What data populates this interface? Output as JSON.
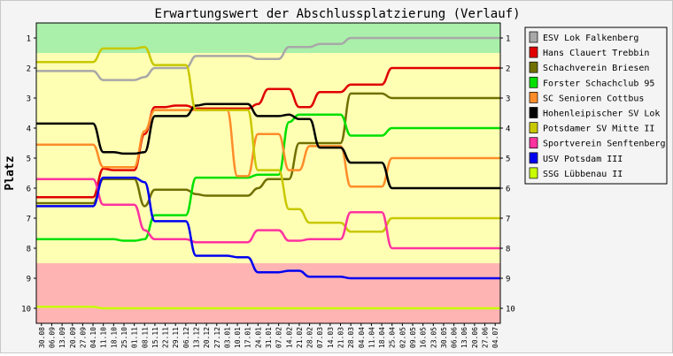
{
  "chart_data": {
    "type": "line",
    "title": "Erwartungswert der Abschlussplatzierung (Verlauf)",
    "xlabel": "",
    "ylabel": "Platz",
    "ylim": [
      1,
      10
    ],
    "y_reversed": true,
    "y_ticks": [
      "1",
      "2",
      "3",
      "4",
      "5",
      "6",
      "7",
      "8",
      "9",
      "10"
    ],
    "legend_position": "right",
    "x": [
      "30.08",
      "06.09",
      "13.09",
      "20.09",
      "27.09",
      "04.10",
      "11.10",
      "18.10",
      "25.10",
      "01.11",
      "08.11",
      "15.11",
      "22.11",
      "29.11",
      "06.12",
      "13.12",
      "20.12",
      "27.12",
      "03.01",
      "10.01",
      "17.01",
      "24.01",
      "31.01",
      "07.02",
      "14.02",
      "21.02",
      "28.02",
      "07.03",
      "14.03",
      "21.03",
      "28.03",
      "04.04",
      "11.04",
      "18.04",
      "25.04",
      "02.05",
      "09.05",
      "16.05",
      "23.05",
      "30.05",
      "06.06",
      "13.06",
      "20.06",
      "27.06",
      "04.07"
    ],
    "zones": [
      {
        "from": 0.5,
        "to": 1.5,
        "color": "#aaf0aa"
      },
      {
        "from": 1.5,
        "to": 8.5,
        "color": "#ffffb4"
      },
      {
        "from": 8.5,
        "to": 10.5,
        "color": "#ffb4b4"
      }
    ],
    "series": [
      {
        "name": "ESV Lok Falkenberg",
        "color": "#a8a8a8",
        "values": [
          2.1,
          2.1,
          2.1,
          2.1,
          2.1,
          2.1,
          2.4,
          2.4,
          2.4,
          2.4,
          2.3,
          2.0,
          2.0,
          2.0,
          2.0,
          1.6,
          1.6,
          1.6,
          1.6,
          1.6,
          1.6,
          1.7,
          1.7,
          1.7,
          1.3,
          1.3,
          1.3,
          1.2,
          1.2,
          1.2,
          1.0,
          1.0,
          1.0,
          1.0,
          1.0,
          1.0,
          1.0,
          1.0,
          1.0,
          1.0,
          1.0,
          1.0,
          1.0,
          1.0,
          1.0
        ]
      },
      {
        "name": "Hans Clauert Trebbin",
        "color": "#e00000",
        "values": [
          6.3,
          6.3,
          6.3,
          6.3,
          6.3,
          6.3,
          5.35,
          5.4,
          5.4,
          5.4,
          4.2,
          3.3,
          3.3,
          3.25,
          3.25,
          3.35,
          3.35,
          3.35,
          3.35,
          3.35,
          3.35,
          3.2,
          2.7,
          2.7,
          2.7,
          3.3,
          3.3,
          2.8,
          2.8,
          2.8,
          2.55,
          2.55,
          2.55,
          2.55,
          2.0,
          2.0,
          2.0,
          2.0,
          2.0,
          2.0,
          2.0,
          2.0,
          2.0,
          2.0,
          2.0
        ]
      },
      {
        "name": "Schachverein Briesen",
        "color": "#707000",
        "values": [
          6.5,
          6.5,
          6.5,
          6.5,
          6.5,
          6.5,
          5.7,
          5.7,
          5.7,
          5.7,
          6.6,
          6.05,
          6.05,
          6.05,
          6.05,
          6.2,
          6.25,
          6.25,
          6.25,
          6.25,
          6.25,
          6.0,
          5.7,
          5.7,
          5.7,
          4.5,
          4.5,
          4.5,
          4.5,
          4.5,
          2.85,
          2.85,
          2.85,
          2.85,
          3.0,
          3.0,
          3.0,
          3.0,
          3.0,
          3.0,
          3.0,
          3.0,
          3.0,
          3.0,
          3.0
        ]
      },
      {
        "name": "Forster Schachclub 95",
        "color": "#00e000",
        "values": [
          7.7,
          7.7,
          7.7,
          7.7,
          7.7,
          7.7,
          7.7,
          7.7,
          7.75,
          7.75,
          7.7,
          6.9,
          6.9,
          6.9,
          6.9,
          5.65,
          5.65,
          5.65,
          5.65,
          5.65,
          5.65,
          5.55,
          5.55,
          5.55,
          3.8,
          3.55,
          3.55,
          3.55,
          3.55,
          3.55,
          4.25,
          4.25,
          4.25,
          4.25,
          4.0,
          4.0,
          4.0,
          4.0,
          4.0,
          4.0,
          4.0,
          4.0,
          4.0,
          4.0,
          4.0
        ]
      },
      {
        "name": "SC Senioren Cottbus",
        "color": "#ff8c28",
        "values": [
          4.55,
          4.55,
          4.55,
          4.55,
          4.55,
          4.55,
          5.3,
          5.3,
          5.3,
          5.3,
          4.1,
          3.4,
          3.4,
          3.4,
          3.4,
          3.4,
          3.4,
          3.4,
          3.4,
          5.6,
          5.6,
          4.2,
          4.2,
          4.2,
          5.4,
          5.4,
          4.6,
          4.6,
          4.6,
          4.6,
          5.95,
          5.95,
          5.95,
          5.95,
          5.0,
          5.0,
          5.0,
          5.0,
          5.0,
          5.0,
          5.0,
          5.0,
          5.0,
          5.0,
          5.0
        ]
      },
      {
        "name": "Hohenleipischer SV Lok",
        "color": "#000000",
        "values": [
          3.85,
          3.85,
          3.85,
          3.85,
          3.85,
          3.85,
          4.8,
          4.8,
          4.85,
          4.85,
          4.8,
          3.6,
          3.6,
          3.6,
          3.6,
          3.25,
          3.2,
          3.2,
          3.2,
          3.2,
          3.2,
          3.6,
          3.6,
          3.6,
          3.55,
          3.7,
          3.7,
          4.65,
          4.65,
          4.65,
          5.15,
          5.15,
          5.15,
          5.15,
          6.0,
          6.0,
          6.0,
          6.0,
          6.0,
          6.0,
          6.0,
          6.0,
          6.0,
          6.0,
          6.0
        ]
      },
      {
        "name": "Potsdamer SV Mitte II",
        "color": "#c8c800",
        "values": [
          1.8,
          1.8,
          1.8,
          1.8,
          1.8,
          1.8,
          1.35,
          1.35,
          1.35,
          1.35,
          1.3,
          1.9,
          1.9,
          1.9,
          1.9,
          3.4,
          3.4,
          3.4,
          3.4,
          3.4,
          3.4,
          5.4,
          5.4,
          5.4,
          6.7,
          6.7,
          7.15,
          7.15,
          7.15,
          7.15,
          7.45,
          7.45,
          7.45,
          7.45,
          7.0,
          7.0,
          7.0,
          7.0,
          7.0,
          7.0,
          7.0,
          7.0,
          7.0,
          7.0,
          7.0
        ]
      },
      {
        "name": "Sportverein Senftenberg",
        "color": "#ff32a0",
        "values": [
          5.7,
          5.7,
          5.7,
          5.7,
          5.7,
          5.7,
          6.55,
          6.55,
          6.55,
          6.55,
          7.4,
          7.7,
          7.7,
          7.7,
          7.7,
          7.8,
          7.8,
          7.8,
          7.8,
          7.8,
          7.8,
          7.4,
          7.4,
          7.4,
          7.75,
          7.75,
          7.7,
          7.7,
          7.7,
          7.7,
          6.8,
          6.8,
          6.8,
          6.8,
          8.0,
          8.0,
          8.0,
          8.0,
          8.0,
          8.0,
          8.0,
          8.0,
          8.0,
          8.0,
          8.0
        ]
      },
      {
        "name": "USV Potsdam III",
        "color": "#0000f0",
        "values": [
          6.6,
          6.6,
          6.6,
          6.6,
          6.6,
          6.6,
          5.65,
          5.65,
          5.65,
          5.65,
          5.8,
          7.1,
          7.1,
          7.1,
          7.1,
          8.25,
          8.25,
          8.25,
          8.25,
          8.3,
          8.3,
          8.8,
          8.8,
          8.8,
          8.75,
          8.75,
          8.95,
          8.95,
          8.95,
          8.95,
          9.0,
          9.0,
          9.0,
          9.0,
          9.0,
          9.0,
          9.0,
          9.0,
          9.0,
          9.0,
          9.0,
          9.0,
          9.0,
          9.0,
          9.0
        ]
      },
      {
        "name": "SSG Lübbenau II",
        "color": "#c8ff00",
        "values": [
          9.95,
          9.95,
          9.95,
          9.95,
          9.95,
          9.95,
          10.0,
          10.0,
          10.0,
          10.0,
          10.0,
          10.0,
          10.0,
          10.0,
          10.0,
          10.0,
          10.0,
          10.0,
          10.0,
          10.0,
          10.0,
          10.0,
          10.0,
          10.0,
          10.0,
          10.0,
          10.0,
          10.0,
          10.0,
          10.0,
          10.0,
          10.0,
          10.0,
          10.0,
          10.0,
          10.0,
          10.0,
          10.0,
          10.0,
          10.0,
          10.0,
          10.0,
          10.0,
          10.0,
          10.0
        ]
      }
    ]
  }
}
